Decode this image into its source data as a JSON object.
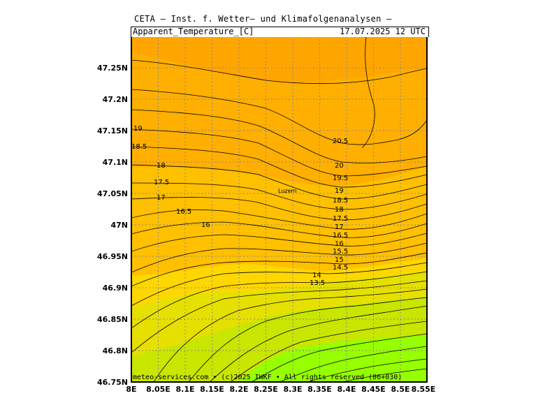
{
  "header": {
    "provider": "CETA — Inst. f. Wetter— und Klimafolgenanalysen —",
    "variable": "Apparent_Temperature_[C]",
    "valid_time": "17.07.2025  12 UTC"
  },
  "footer": "meteo-services.com • (c)2025 IWKF • All rights reserved (06+030)",
  "axes": {
    "lon_ticks": [
      "8E",
      "8.05E",
      "8.1E",
      "8.15E",
      "8.2E",
      "8.25E",
      "8.3E",
      "8.35E",
      "8.4E",
      "8.45E",
      "8.5E",
      "8.55E"
    ],
    "lat_ticks": [
      "47.25N",
      "47.2N",
      "47.15N",
      "47.1N",
      "47.05N",
      "47N",
      "46.95N",
      "46.9N",
      "46.85N",
      "46.8N",
      "46.75N"
    ]
  },
  "city": "Luzern",
  "colors": {
    "band_21": "#ffa500",
    "band_19": "#ffaf00",
    "band_17": "#ffc000",
    "band_15": "#ffd700",
    "band_13": "#e6e000",
    "band_11": "#c8e600",
    "band_9": "#96ff00"
  },
  "contour_labels": [
    "20.5",
    "20",
    "19.5",
    "19",
    "18.5",
    "18",
    "17.5",
    "17",
    "16.5",
    "16",
    "15.5",
    "15",
    "14.5",
    "14",
    "13.5",
    "19",
    "18.5",
    "18",
    "17.5",
    "17",
    "16.5",
    "16"
  ]
}
